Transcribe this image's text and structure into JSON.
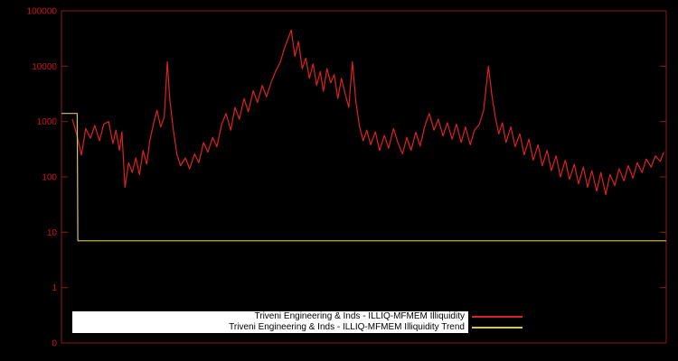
{
  "page": {
    "background": "#000000"
  },
  "chart_data": {
    "type": "line",
    "title": "",
    "xlabel": "",
    "ylabel": "",
    "y_scale": "log",
    "ylim": [
      0.1,
      100000
    ],
    "grid": false,
    "frame_color": "#8b1a1a",
    "tick_color": "#cc1122",
    "background_color": "#000000",
    "yticks": [
      {
        "label": "100000",
        "value": 100000
      },
      {
        "label": "10000",
        "value": 10000
      },
      {
        "label": "1000",
        "value": 1000
      },
      {
        "label": "100",
        "value": 100
      },
      {
        "label": "10",
        "value": 10
      },
      {
        "label": "1",
        "value": 1
      },
      {
        "label": "0",
        "value": 0.1
      }
    ],
    "legend": {
      "position": "bottom-center",
      "entries": [
        {
          "label": "Triveni Engineering & Inds - ILLIQ-MFMEM Illiquidity",
          "color": "#dd2222"
        },
        {
          "label": "Triveni Engineering & Inds - ILLIQ-MFMEM Illiquidity Trend",
          "color": "#d6c55a"
        }
      ]
    },
    "series": [
      {
        "name": "Triveni Engineering & Inds - ILLIQ-MFMEM Illiquidity",
        "color": "#dd2222",
        "points": [
          [
            0.018,
            1100
          ],
          [
            0.025,
            600
          ],
          [
            0.033,
            250
          ],
          [
            0.04,
            750
          ],
          [
            0.048,
            500
          ],
          [
            0.055,
            850
          ],
          [
            0.063,
            450
          ],
          [
            0.07,
            900
          ],
          [
            0.078,
            1000
          ],
          [
            0.085,
            400
          ],
          [
            0.09,
            700
          ],
          [
            0.096,
            300
          ],
          [
            0.1,
            650
          ],
          [
            0.105,
            65
          ],
          [
            0.111,
            180
          ],
          [
            0.117,
            120
          ],
          [
            0.123,
            220
          ],
          [
            0.129,
            110
          ],
          [
            0.135,
            300
          ],
          [
            0.141,
            170
          ],
          [
            0.146,
            450
          ],
          [
            0.152,
            900
          ],
          [
            0.158,
            1600
          ],
          [
            0.164,
            800
          ],
          [
            0.17,
            1200
          ],
          [
            0.175,
            12000
          ],
          [
            0.179,
            2500
          ],
          [
            0.185,
            700
          ],
          [
            0.191,
            250
          ],
          [
            0.197,
            160
          ],
          [
            0.205,
            220
          ],
          [
            0.212,
            140
          ],
          [
            0.22,
            260
          ],
          [
            0.227,
            180
          ],
          [
            0.235,
            420
          ],
          [
            0.242,
            280
          ],
          [
            0.25,
            520
          ],
          [
            0.257,
            350
          ],
          [
            0.265,
            900
          ],
          [
            0.272,
            1400
          ],
          [
            0.28,
            700
          ],
          [
            0.287,
            1800
          ],
          [
            0.294,
            1100
          ],
          [
            0.302,
            2600
          ],
          [
            0.309,
            1500
          ],
          [
            0.317,
            3600
          ],
          [
            0.324,
            2200
          ],
          [
            0.332,
            4500
          ],
          [
            0.339,
            2800
          ],
          [
            0.347,
            5200
          ],
          [
            0.354,
            8000
          ],
          [
            0.362,
            12000
          ],
          [
            0.368,
            20000
          ],
          [
            0.374,
            30000
          ],
          [
            0.38,
            45000
          ],
          [
            0.386,
            15000
          ],
          [
            0.392,
            28000
          ],
          [
            0.398,
            9000
          ],
          [
            0.404,
            14000
          ],
          [
            0.41,
            6000
          ],
          [
            0.416,
            11000
          ],
          [
            0.422,
            4500
          ],
          [
            0.428,
            8000
          ],
          [
            0.433,
            3500
          ],
          [
            0.439,
            9000
          ],
          [
            0.445,
            5000
          ],
          [
            0.451,
            7000
          ],
          [
            0.457,
            2600
          ],
          [
            0.463,
            6000
          ],
          [
            0.469,
            3200
          ],
          [
            0.475,
            1800
          ],
          [
            0.481,
            12000
          ],
          [
            0.487,
            2200
          ],
          [
            0.493,
            800
          ],
          [
            0.499,
            450
          ],
          [
            0.505,
            700
          ],
          [
            0.511,
            380
          ],
          [
            0.519,
            650
          ],
          [
            0.526,
            300
          ],
          [
            0.534,
            560
          ],
          [
            0.541,
            330
          ],
          [
            0.549,
            750
          ],
          [
            0.556,
            420
          ],
          [
            0.564,
            260
          ],
          [
            0.571,
            520
          ],
          [
            0.578,
            300
          ],
          [
            0.586,
            640
          ],
          [
            0.593,
            360
          ],
          [
            0.601,
            850
          ],
          [
            0.608,
            1400
          ],
          [
            0.616,
            700
          ],
          [
            0.623,
            1100
          ],
          [
            0.631,
            550
          ],
          [
            0.638,
            950
          ],
          [
            0.646,
            480
          ],
          [
            0.653,
            900
          ],
          [
            0.661,
            420
          ],
          [
            0.668,
            800
          ],
          [
            0.676,
            380
          ],
          [
            0.683,
            700
          ],
          [
            0.691,
            900
          ],
          [
            0.698,
            1600
          ],
          [
            0.706,
            10000
          ],
          [
            0.712,
            2800
          ],
          [
            0.718,
            1100
          ],
          [
            0.723,
            600
          ],
          [
            0.729,
            950
          ],
          [
            0.735,
            420
          ],
          [
            0.743,
            800
          ],
          [
            0.75,
            350
          ],
          [
            0.758,
            600
          ],
          [
            0.765,
            250
          ],
          [
            0.773,
            480
          ],
          [
            0.78,
            200
          ],
          [
            0.788,
            380
          ],
          [
            0.795,
            160
          ],
          [
            0.803,
            300
          ],
          [
            0.81,
            130
          ],
          [
            0.818,
            240
          ],
          [
            0.825,
            100
          ],
          [
            0.833,
            200
          ],
          [
            0.84,
            90
          ],
          [
            0.848,
            170
          ],
          [
            0.855,
            75
          ],
          [
            0.863,
            150
          ],
          [
            0.87,
            65
          ],
          [
            0.877,
            130
          ],
          [
            0.885,
            55
          ],
          [
            0.892,
            120
          ],
          [
            0.9,
            48
          ],
          [
            0.907,
            110
          ],
          [
            0.915,
            70
          ],
          [
            0.922,
            140
          ],
          [
            0.93,
            85
          ],
          [
            0.937,
            160
          ],
          [
            0.945,
            95
          ],
          [
            0.952,
            180
          ],
          [
            0.96,
            120
          ],
          [
            0.967,
            210
          ],
          [
            0.975,
            150
          ],
          [
            0.982,
            240
          ],
          [
            0.99,
            190
          ],
          [
            0.996,
            280
          ]
        ]
      },
      {
        "name": "Triveni Engineering & Inds - ILLIQ-MFMEM Illiquidity Trend",
        "color": "#d6c55a",
        "points": [
          [
            0.0,
            1400
          ],
          [
            0.026,
            1400
          ],
          [
            0.027,
            7
          ],
          [
            1.0,
            7
          ]
        ]
      }
    ]
  }
}
